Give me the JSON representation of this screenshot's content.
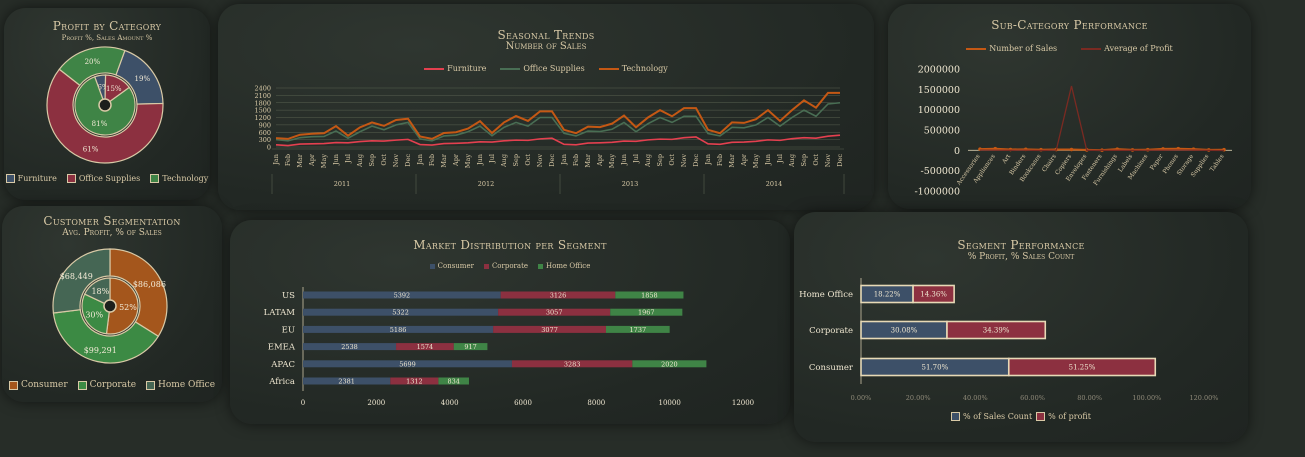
{
  "colors": {
    "furniture": "#3d5068",
    "office": "#8c3040",
    "technology": "#3f8446",
    "consumer": "#a4561c",
    "corporate": "#3c8a44",
    "homeoffice": "#456654",
    "line_furniture": "#e4404f",
    "line_office": "#496e54",
    "line_tech": "#c45814",
    "text": "#d8c9a6",
    "grid": "#58604f"
  },
  "profit_by_category": {
    "title": "Profit by Category",
    "subtitle": "Profit %, Sales Amount %",
    "legend": [
      "Furniture",
      "Office Supplies",
      "Technology"
    ],
    "chart_data": {
      "type": "pie",
      "subtype": "double-donut",
      "categories": [
        "Furniture",
        "Office Supplies",
        "Technology"
      ],
      "series": [
        {
          "name": "Profit %",
          "values": [
            -6,
            15,
            81
          ],
          "labels": [
            "-6%",
            "15%",
            "81%"
          ]
        },
        {
          "name": "Sales Amount %",
          "values": [
            19,
            61,
            20
          ],
          "labels": [
            "19%",
            "61%",
            "20%"
          ]
        }
      ]
    }
  },
  "seasonal_trends": {
    "title": "Seasonal Trends",
    "subtitle": "Number of Sales",
    "legend": [
      "Furniture",
      "Office Supplies",
      "Technology"
    ],
    "chart_data": {
      "type": "line",
      "months": [
        "Jan",
        "Feb",
        "Mar",
        "Apr",
        "May",
        "Jun",
        "Jul",
        "Aug",
        "Sep",
        "Oct",
        "Nov",
        "Dec"
      ],
      "years": [
        "2011",
        "2012",
        "2013",
        "2014"
      ],
      "yticks": [
        0,
        300,
        600,
        900,
        1200,
        1500,
        1800,
        2100,
        2400
      ],
      "ylim": [
        0,
        2400
      ],
      "series": [
        {
          "name": "Furniture",
          "values": [
            90,
            60,
            120,
            130,
            140,
            180,
            170,
            220,
            250,
            240,
            280,
            310,
            100,
            80,
            140,
            150,
            170,
            210,
            200,
            250,
            280,
            270,
            330,
            360,
            110,
            90,
            160,
            170,
            190,
            240,
            230,
            290,
            320,
            310,
            380,
            410,
            130,
            110,
            190,
            200,
            230,
            290,
            270,
            340,
            380,
            360,
            440,
            480
          ]
        },
        {
          "name": "Office Supplies",
          "values": [
            300,
            250,
            380,
            420,
            430,
            650,
            360,
            620,
            850,
            700,
            900,
            1000,
            330,
            250,
            450,
            480,
            620,
            850,
            460,
            800,
            1000,
            850,
            1200,
            1200,
            560,
            450,
            650,
            630,
            720,
            1000,
            620,
            950,
            1200,
            1000,
            1250,
            1250,
            550,
            450,
            800,
            780,
            900,
            1200,
            850,
            1200,
            1500,
            1250,
            1750,
            1800
          ]
        },
        {
          "name": "Technology",
          "values": [
            360,
            330,
            500,
            540,
            560,
            850,
            460,
            800,
            1000,
            860,
            1100,
            1150,
            430,
            330,
            570,
            600,
            750,
            1050,
            570,
            1000,
            1260,
            1060,
            1450,
            1450,
            700,
            560,
            830,
            810,
            950,
            1280,
            800,
            1200,
            1500,
            1250,
            1580,
            1580,
            700,
            560,
            1000,
            980,
            1130,
            1500,
            1060,
            1500,
            1900,
            1600,
            2200,
            2200
          ]
        }
      ]
    }
  },
  "subcategory_performance": {
    "title": "Sub-Category Performance",
    "legend": [
      "Number of Sales",
      "Average of Profit"
    ],
    "chart_data": {
      "type": "line",
      "categories": [
        "Accessories",
        "Appliances",
        "Art",
        "Binders",
        "Bookcases",
        "Chairs",
        "Copiers",
        "Envelopes",
        "Fasteners",
        "Furnishings",
        "Labels",
        "Machines",
        "Paper",
        "Phones",
        "Storage",
        "Supplies",
        "Tables"
      ],
      "yticks": [
        "2000000",
        "1500000",
        "1000000",
        "500000",
        "0",
        "-500000",
        "-1000000"
      ],
      "ylim": [
        -1000000,
        2000000
      ],
      "series": [
        {
          "name": "Number of Sales",
          "values": [
            30000,
            40000,
            20000,
            25000,
            15000,
            20000,
            20000,
            10000,
            5000,
            30000,
            10000,
            15000,
            35000,
            40000,
            30000,
            10000,
            15000
          ]
        },
        {
          "name": "Average of Profit",
          "values": [
            5000,
            2000,
            1000,
            2000,
            -3000,
            5000,
            1580000,
            1000,
            500,
            1000,
            800,
            2000,
            1500,
            6000,
            3000,
            200,
            -5000
          ]
        }
      ]
    }
  },
  "customer_segmentation": {
    "title": "Customer Segmentation",
    "subtitle": "Avg. Profit, % of Sales",
    "legend": [
      "Consumer",
      "Corporate",
      "Home Office"
    ],
    "chart_data": {
      "type": "pie",
      "subtype": "double-donut",
      "categories": [
        "Consumer",
        "Corporate",
        "Home Office"
      ],
      "series": [
        {
          "name": "% of Sales",
          "values": [
            52,
            30,
            18
          ],
          "labels": [
            "52%",
            "30%",
            "18%"
          ]
        },
        {
          "name": "Avg. Profit",
          "values": [
            86086,
            99291,
            68449
          ],
          "labels": [
            "$86,086",
            "$99,291",
            "$68,449"
          ]
        }
      ]
    }
  },
  "market_distribution": {
    "title": "Market Distribution per Segment",
    "legend": [
      "Consumer",
      "Corporate",
      "Home Office"
    ],
    "chart_data": {
      "type": "bar",
      "orientation": "horizontal",
      "stacked": true,
      "categories": [
        "US",
        "LATAM",
        "EU",
        "EMEA",
        "APAC",
        "Africa"
      ],
      "xticks": [
        "0",
        "2000",
        "4000",
        "6000",
        "8000",
        "10000",
        "12000"
      ],
      "xlim": [
        0,
        12000
      ],
      "series": [
        {
          "name": "Consumer",
          "values": [
            5392,
            5322,
            5186,
            2538,
            5699,
            2381
          ],
          "labels": [
            "5392",
            "5322",
            "5186",
            "2538",
            "5699",
            "2381"
          ]
        },
        {
          "name": "Corporate",
          "values": [
            3126,
            3057,
            3077,
            1574,
            3283,
            1312
          ],
          "labels": [
            "3126",
            "3057",
            "3077",
            "1574",
            "3283",
            "1312"
          ]
        },
        {
          "name": "Home Office",
          "values": [
            1858,
            1967,
            1737,
            917,
            2020,
            834
          ],
          "labels": [
            "1858",
            "1967",
            "1737",
            "917",
            "2020",
            "834"
          ]
        }
      ]
    }
  },
  "segment_performance": {
    "title": "Segment Performance",
    "subtitle": "% Profit, % Sales Count",
    "legend": [
      "% of Sales Count",
      "% of profit"
    ],
    "chart_data": {
      "type": "bar",
      "orientation": "horizontal",
      "stacked": true,
      "categories": [
        "Home Office",
        "Corporate",
        "Consumer"
      ],
      "xticks": [
        "0.00%",
        "20.00%",
        "40.00%",
        "60.00%",
        "80.00%",
        "100.00%",
        "120.00%"
      ],
      "xlim": [
        0,
        120
      ],
      "series": [
        {
          "name": "% of Sales Count",
          "values": [
            18.22,
            30.08,
            51.7
          ],
          "labels": [
            "18.22%",
            "30.08%",
            "51.70%"
          ]
        },
        {
          "name": "% of profit",
          "values": [
            14.36,
            34.39,
            51.25
          ],
          "labels": [
            "14.36%",
            "34.39%",
            "51.25%"
          ]
        }
      ]
    }
  }
}
